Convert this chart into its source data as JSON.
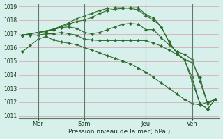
{
  "xlabel": "Pression niveau de la mer( hPa )",
  "bg_color": "#d8f0ec",
  "grid_color": "#d8a0a8",
  "line_color": "#2d6b2d",
  "vline_color": "#5a7a6a",
  "ylim": [
    1011,
    1019
  ],
  "yticks": [
    1011,
    1012,
    1013,
    1014,
    1015,
    1016,
    1017,
    1018,
    1019
  ],
  "xtick_labels": [
    "Mer",
    "Sam",
    "Jeu",
    "Ven"
  ],
  "xtick_positions": [
    2,
    8,
    16,
    22
  ],
  "vline_positions": [
    2,
    8,
    16,
    22
  ],
  "total_points": 26,
  "lines": [
    [
      1015.7,
      1016.15,
      1016.6,
      1016.8,
      1016.55,
      1016.4,
      1016.3,
      1016.2,
      1016.0,
      1015.8,
      1015.6,
      1015.4,
      1015.2,
      1015.0,
      1014.8,
      1014.5,
      1014.2,
      1013.8,
      1013.4,
      1013.0,
      1012.6,
      1012.2,
      1011.9,
      1011.8,
      1012.0,
      1012.2
    ],
    [
      1016.9,
      1016.9,
      1016.9,
      1017.0,
      1017.0,
      1017.1,
      1017.0,
      1016.9,
      1016.6,
      1016.55,
      1016.5,
      1016.5,
      1016.5,
      1016.5,
      1016.5,
      1016.5,
      1016.5,
      1016.3,
      1016.1,
      1015.8,
      1015.5,
      1015.1,
      1014.9,
      1013.8,
      1011.9,
      1012.2
    ],
    [
      1016.9,
      1017.0,
      1017.1,
      1017.15,
      1017.3,
      1017.45,
      1017.5,
      1017.4,
      1017.1,
      1017.0,
      1017.1,
      1017.3,
      1017.5,
      1017.7,
      1017.75,
      1017.7,
      1017.3,
      1017.3,
      1016.7,
      1016.2,
      1015.7,
      1015.5,
      1015.1,
      1013.5,
      1011.9,
      1012.2
    ],
    [
      1016.9,
      1017.0,
      1017.1,
      1017.2,
      1017.3,
      1017.5,
      1017.7,
      1017.9,
      1018.0,
      1018.2,
      1018.5,
      1018.7,
      1018.8,
      1018.85,
      1018.9,
      1018.9,
      1018.4,
      1018.15,
      1017.5,
      1016.4,
      1015.6,
      1015.1,
      1013.8,
      1011.9,
      1011.5,
      1012.2
    ],
    [
      1016.9,
      1017.0,
      1017.1,
      1017.2,
      1017.35,
      1017.55,
      1017.8,
      1018.1,
      1018.3,
      1018.5,
      1018.7,
      1018.85,
      1018.9,
      1018.9,
      1018.85,
      1018.75,
      1018.3,
      1018.0,
      1017.5,
      1016.4,
      1015.6,
      1015.1,
      1013.5,
      1011.9,
      1011.5,
      1012.2
    ]
  ]
}
